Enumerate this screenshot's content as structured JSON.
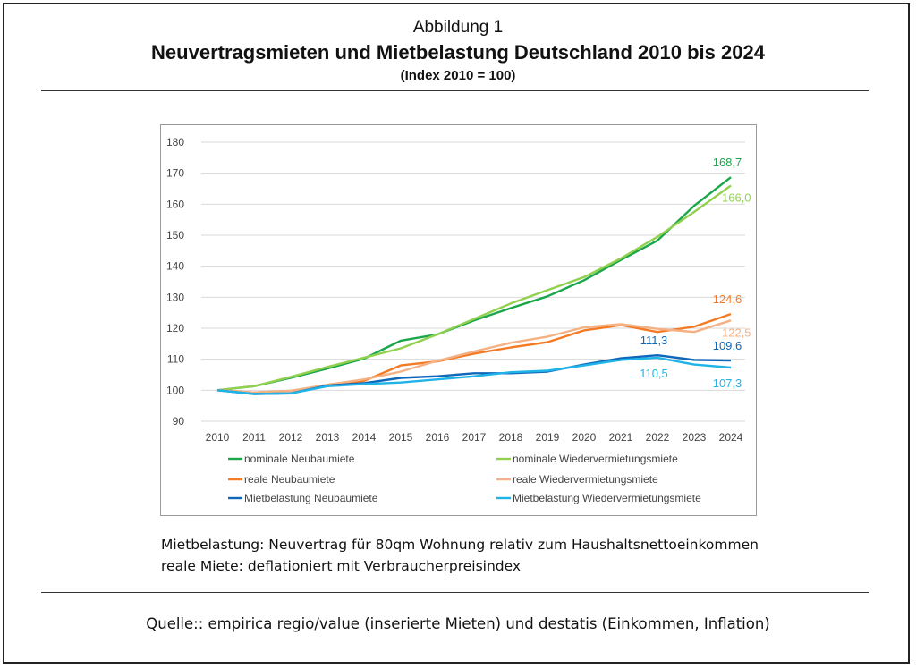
{
  "figure": {
    "label": "Abbildung 1",
    "title": "Neuvertragsmieten und Mietbelastung Deutschland 2010 bis 2024",
    "subtitle": "(Index 2010 = 100)"
  },
  "notes": [
    "Mietbelastung: Neuvertrag für 80qm Wohnung relativ zum Haushaltsnettoeinkommen",
    "reale Miete: deflationiert mit Verbraucherpreisindex"
  ],
  "source": "Quelle:: empirica regio/value (inserierte Mieten) und destatis (Einkommen, Inflation)",
  "chart_data": {
    "type": "line",
    "title": "",
    "xlabel": "",
    "ylabel": "",
    "x": [
      "2010",
      "2011",
      "2012",
      "2013",
      "2014",
      "2015",
      "2016",
      "2017",
      "2018",
      "2019",
      "2020",
      "2021",
      "2022",
      "2023",
      "2024"
    ],
    "ylim": [
      90,
      180
    ],
    "yticks": [
      90,
      100,
      110,
      120,
      130,
      140,
      150,
      160,
      170,
      180
    ],
    "grid": true,
    "legend_position": "bottom",
    "series": [
      {
        "name": "nominale Neubaumiete",
        "color": "#1aa64a",
        "values": [
          100,
          101.3,
          104.0,
          107.0,
          110.2,
          116.0,
          118.0,
          122.5,
          126.5,
          130.3,
          135.5,
          142.0,
          148.3,
          159.5,
          168.7
        ]
      },
      {
        "name": "nominale Wiedervermietungsmiete",
        "color": "#92d050",
        "values": [
          100,
          101.3,
          104.3,
          107.5,
          110.5,
          113.5,
          118.0,
          123.0,
          128.0,
          132.3,
          136.5,
          142.5,
          149.5,
          157.5,
          166.0
        ]
      },
      {
        "name": "reale Neubaumiete",
        "color": "#f47b25",
        "values": [
          100,
          99.3,
          99.8,
          101.5,
          103.0,
          108.0,
          109.3,
          111.8,
          113.8,
          115.5,
          119.3,
          121.0,
          118.8,
          120.5,
          124.6
        ]
      },
      {
        "name": "reale Wiedervermietungsmiete",
        "color": "#f4b183",
        "values": [
          100,
          99.3,
          99.8,
          101.8,
          103.5,
          106.0,
          109.5,
          112.5,
          115.3,
          117.3,
          120.3,
          121.3,
          119.8,
          118.8,
          122.5
        ]
      },
      {
        "name": "Mietbelastung Neubaumiete",
        "color": "#0f67b9",
        "values": [
          100,
          98.8,
          99.0,
          101.5,
          102.3,
          104.0,
          104.5,
          105.5,
          105.5,
          106.0,
          108.3,
          110.3,
          111.3,
          109.8,
          109.6
        ]
      },
      {
        "name": "Mietbelastung Wiedervermietungsmiete",
        "color": "#1fb3e8",
        "values": [
          100,
          98.8,
          99.0,
          101.3,
          102.0,
          102.5,
          103.5,
          104.5,
          105.8,
          106.3,
          108.0,
          109.8,
          110.5,
          108.3,
          107.3
        ]
      }
    ],
    "annotations": [
      {
        "text": "168,7",
        "x": "2024",
        "y": 168.7,
        "color": "#1aa64a",
        "anchor": "above"
      },
      {
        "text": "166,0",
        "x": "2024",
        "y": 166.0,
        "color": "#92d050",
        "anchor": "right"
      },
      {
        "text": "124,6",
        "x": "2024",
        "y": 124.6,
        "color": "#f47b25",
        "anchor": "above"
      },
      {
        "text": "122,5",
        "x": "2024",
        "y": 122.5,
        "color": "#f4b183",
        "anchor": "right"
      },
      {
        "text": "111,3",
        "x": "2022",
        "y": 111.3,
        "color": "#0f67b9",
        "anchor": "above"
      },
      {
        "text": "109,6",
        "x": "2024",
        "y": 109.6,
        "color": "#0f67b9",
        "anchor": "above"
      },
      {
        "text": "110,5",
        "x": "2022",
        "y": 110.5,
        "color": "#1fb3e8",
        "anchor": "below"
      },
      {
        "text": "107,3",
        "x": "2024",
        "y": 107.3,
        "color": "#1fb3e8",
        "anchor": "below"
      }
    ]
  }
}
